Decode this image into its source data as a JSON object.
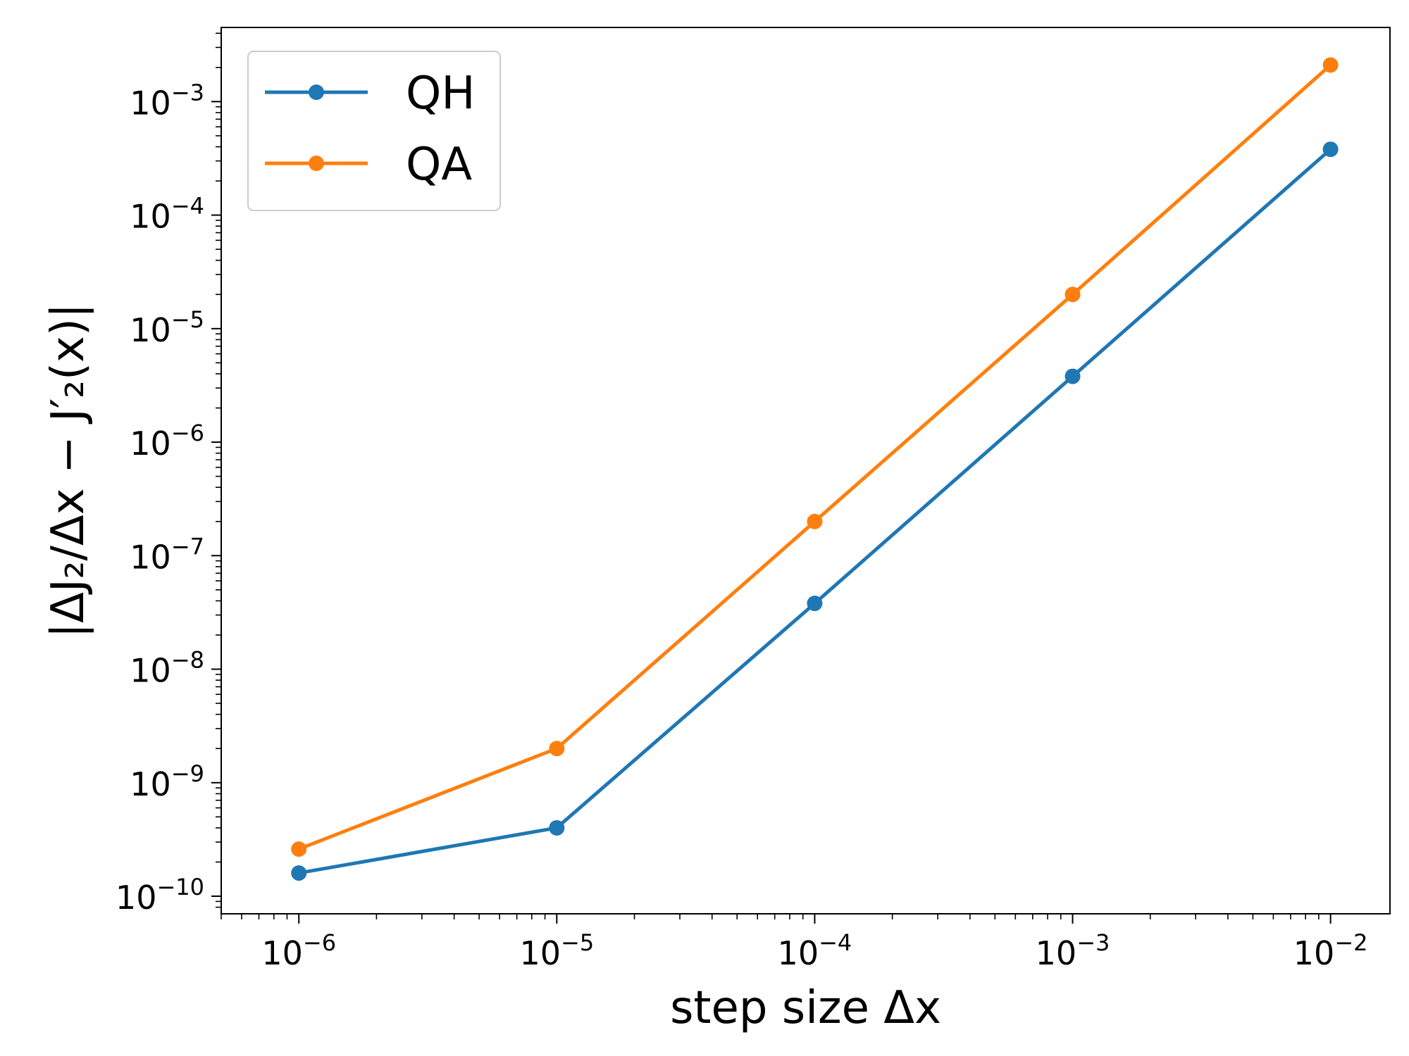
{
  "chart_data": {
    "type": "line",
    "xscale": "log",
    "yscale": "log",
    "xlabel": "step size Δx",
    "ylabel": "|ΔJ₂/Δx − J′₂(x)|",
    "xlim": [
      5e-07,
      0.017
    ],
    "ylim": [
      7e-11,
      0.0045
    ],
    "x_ticks": [
      {
        "value": 1e-06,
        "base": "10",
        "exp": "−6"
      },
      {
        "value": 1e-05,
        "base": "10",
        "exp": "−5"
      },
      {
        "value": 0.0001,
        "base": "10",
        "exp": "−4"
      },
      {
        "value": 0.001,
        "base": "10",
        "exp": "−3"
      },
      {
        "value": 0.01,
        "base": "10",
        "exp": "−2"
      }
    ],
    "y_ticks": [
      {
        "value": 1e-10,
        "base": "10",
        "exp": "−10"
      },
      {
        "value": 1e-09,
        "base": "10",
        "exp": "−9"
      },
      {
        "value": 1e-08,
        "base": "10",
        "exp": "−8"
      },
      {
        "value": 1e-07,
        "base": "10",
        "exp": "−7"
      },
      {
        "value": 1e-06,
        "base": "10",
        "exp": "−6"
      },
      {
        "value": 1e-05,
        "base": "10",
        "exp": "−5"
      },
      {
        "value": 0.0001,
        "base": "10",
        "exp": "−4"
      },
      {
        "value": 0.001,
        "base": "10",
        "exp": "−3"
      }
    ],
    "x": [
      1e-06,
      1e-05,
      0.0001,
      0.001,
      0.01
    ],
    "series": [
      {
        "name": "QH",
        "color": "#1f77b4",
        "values": [
          1.6e-10,
          4e-10,
          3.8e-08,
          3.8e-06,
          0.00038
        ]
      },
      {
        "name": "QA",
        "color": "#ff7f0e",
        "values": [
          2.6e-10,
          2e-09,
          2e-07,
          2e-05,
          0.0021
        ]
      }
    ],
    "legend_position": "top-left",
    "grid": false
  }
}
